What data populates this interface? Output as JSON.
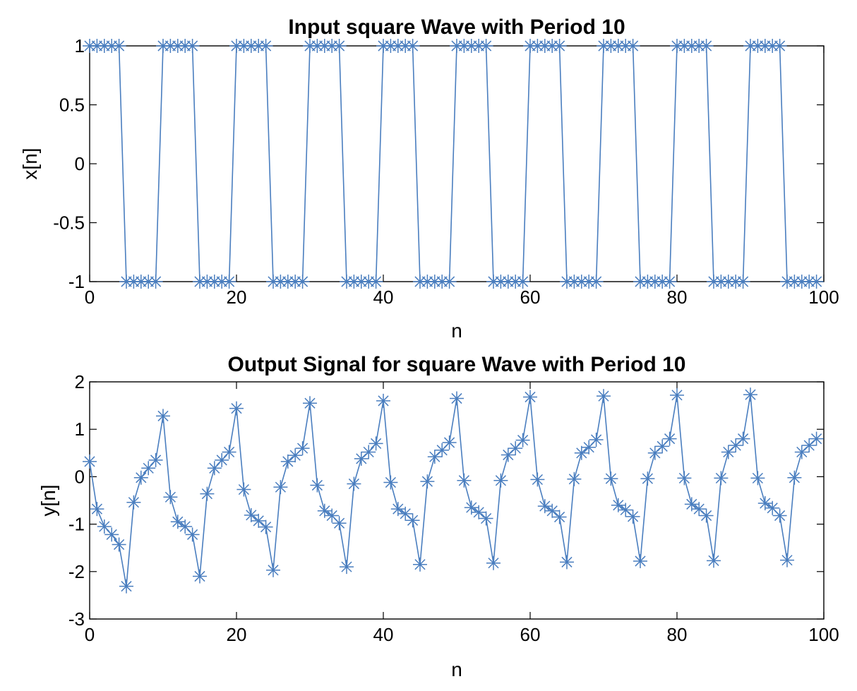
{
  "chart_data": [
    {
      "type": "line",
      "title": "Input square Wave with Period 10",
      "xlabel": "n",
      "ylabel": "x[n]",
      "xlim": [
        0,
        100
      ],
      "ylim": [
        -1,
        1
      ],
      "xticks": [
        "0",
        "20",
        "40",
        "60",
        "80",
        "100"
      ],
      "yticks": [
        "-1",
        "-0.5",
        "0",
        "0.5",
        "1"
      ],
      "grid": false,
      "marker": "asterisk",
      "color": "#4a7ebf",
      "series": [
        {
          "x": [
            0,
            1,
            2,
            3,
            4,
            5,
            6,
            7,
            8,
            9,
            10,
            11,
            12,
            13,
            14,
            15,
            16,
            17,
            18,
            19,
            20,
            21,
            22,
            23,
            24,
            25,
            26,
            27,
            28,
            29,
            30,
            31,
            32,
            33,
            34,
            35,
            36,
            37,
            38,
            39,
            40,
            41,
            42,
            43,
            44,
            45,
            46,
            47,
            48,
            49,
            50,
            51,
            52,
            53,
            54,
            55,
            56,
            57,
            58,
            59,
            60,
            61,
            62,
            63,
            64,
            65,
            66,
            67,
            68,
            69,
            70,
            71,
            72,
            73,
            74,
            75,
            76,
            77,
            78,
            79,
            80,
            81,
            82,
            83,
            84,
            85,
            86,
            87,
            88,
            89,
            90,
            91,
            92,
            93,
            94,
            95,
            96,
            97,
            98,
            99
          ],
          "values": [
            1,
            1,
            1,
            1,
            1,
            -1,
            -1,
            -1,
            -1,
            -1,
            1,
            1,
            1,
            1,
            1,
            -1,
            -1,
            -1,
            -1,
            -1,
            1,
            1,
            1,
            1,
            1,
            -1,
            -1,
            -1,
            -1,
            -1,
            1,
            1,
            1,
            1,
            1,
            -1,
            -1,
            -1,
            -1,
            -1,
            1,
            1,
            1,
            1,
            1,
            -1,
            -1,
            -1,
            -1,
            -1,
            1,
            1,
            1,
            1,
            1,
            -1,
            -1,
            -1,
            -1,
            -1,
            1,
            1,
            1,
            1,
            1,
            -1,
            -1,
            -1,
            -1,
            -1,
            1,
            1,
            1,
            1,
            1,
            -1,
            -1,
            -1,
            -1,
            -1,
            1,
            1,
            1,
            1,
            1,
            -1,
            -1,
            -1,
            -1,
            -1,
            1,
            1,
            1,
            1,
            1,
            -1,
            -1,
            -1,
            -1,
            -1
          ]
        }
      ]
    },
    {
      "type": "line",
      "title": "Output Signal for square Wave with Period 10",
      "xlabel": "n",
      "ylabel": "y[n]",
      "xlim": [
        0,
        100
      ],
      "ylim": [
        -3,
        2
      ],
      "xticks": [
        "0",
        "20",
        "40",
        "60",
        "80",
        "100"
      ],
      "yticks": [
        "-3",
        "-2",
        "-1",
        "0",
        "1",
        "2"
      ],
      "grid": false,
      "marker": "asterisk",
      "color": "#4a7ebf",
      "series": [
        {
          "x": [
            0,
            1,
            2,
            3,
            4,
            5,
            6,
            7,
            8,
            9,
            10,
            11,
            12,
            13,
            14,
            15,
            16,
            17,
            18,
            19,
            20,
            21,
            22,
            23,
            24,
            25,
            26,
            27,
            28,
            29,
            30,
            31,
            32,
            33,
            34,
            35,
            36,
            37,
            38,
            39,
            40,
            41,
            42,
            43,
            44,
            45,
            46,
            47,
            48,
            49,
            50,
            51,
            52,
            53,
            54,
            55,
            56,
            57,
            58,
            59,
            60,
            61,
            62,
            63,
            64,
            65,
            66,
            67,
            68,
            69,
            70,
            71,
            72,
            73,
            74,
            75,
            76,
            77,
            78,
            79,
            80,
            81,
            82,
            83,
            84,
            85,
            86,
            87,
            88,
            89,
            90,
            91,
            92,
            93,
            94,
            95,
            96,
            97,
            98,
            99
          ],
          "values": [
            0.32,
            -0.68,
            -1.05,
            -1.22,
            -1.43,
            -2.31,
            -0.54,
            -0.02,
            0.18,
            0.35,
            1.28,
            -0.43,
            -0.95,
            -1.05,
            -1.22,
            -2.1,
            -0.36,
            0.18,
            0.35,
            0.52,
            1.44,
            -0.27,
            -0.81,
            -0.93,
            -1.06,
            -1.97,
            -0.22,
            0.32,
            0.45,
            0.6,
            1.55,
            -0.18,
            -0.72,
            -0.82,
            -0.98,
            -1.9,
            -0.15,
            0.38,
            0.52,
            0.7,
            1.6,
            -0.12,
            -0.68,
            -0.78,
            -0.92,
            -1.85,
            -0.1,
            0.42,
            0.56,
            0.72,
            1.65,
            -0.08,
            -0.65,
            -0.75,
            -0.88,
            -1.82,
            -0.08,
            0.46,
            0.6,
            0.77,
            1.68,
            -0.06,
            -0.62,
            -0.72,
            -0.85,
            -1.8,
            -0.05,
            0.5,
            0.62,
            0.78,
            1.7,
            -0.04,
            -0.6,
            -0.7,
            -0.84,
            -1.78,
            -0.04,
            0.5,
            0.64,
            0.8,
            1.72,
            -0.03,
            -0.58,
            -0.68,
            -0.82,
            -1.77,
            -0.03,
            0.52,
            0.66,
            0.8,
            1.73,
            -0.03,
            -0.56,
            -0.66,
            -0.82,
            -1.76,
            -0.02,
            0.52,
            0.66,
            0.8
          ]
        }
      ]
    }
  ]
}
